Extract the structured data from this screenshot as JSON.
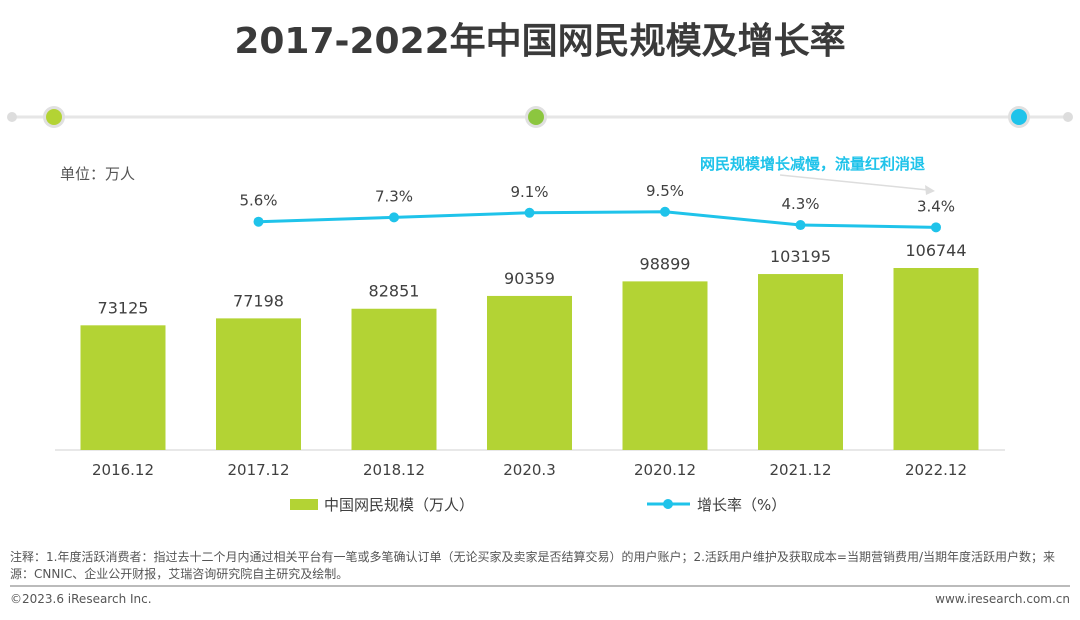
{
  "title": "2017-2022年中国网民规模及增长率",
  "unit_label": "单位：万人",
  "annotation": "网民规模增长减慢，流量红利消退",
  "note": "注释：1.年度活跃消费者：指过去十二个月内通过相关平台有一笔或多笔确认订单（无论买家及卖家是否结算交易）的用户账户；2.活跃用户维护及获取成本=当期营销费用/当期年度活跃用户数；来源：CNNIC、企业公开财报，艾瑞咨询研究院自主研究及绘制。",
  "copyright": "©2023.6 iResearch Inc.",
  "website": "www.iresearch.com.cn",
  "colors": {
    "bar": "#b3d334",
    "line": "#1fc3ea",
    "timeline_dots": [
      "#b3d334",
      "#8cc63f",
      "#1fc3ea"
    ]
  },
  "chart_data": {
    "type": "bar+line",
    "categories": [
      "2016.12",
      "2017.12",
      "2018.12",
      "2020.3",
      "2020.12",
      "2021.12",
      "2022.12"
    ],
    "series": [
      {
        "name": "中国网民规模（万人）",
        "type": "bar",
        "values": [
          73125,
          77198,
          82851,
          90359,
          98899,
          103195,
          106744
        ],
        "labels": [
          "73125",
          "77198",
          "82851",
          "90359",
          "98899",
          "103195",
          "106744"
        ]
      },
      {
        "name": "增长率（%）",
        "type": "line",
        "values": [
          null,
          5.6,
          7.3,
          9.1,
          9.5,
          4.3,
          3.4
        ],
        "labels": [
          "",
          "5.6%",
          "7.3%",
          "9.1%",
          "9.5%",
          "4.3%",
          "3.4%"
        ]
      }
    ],
    "legend": "bottom",
    "grid": false
  }
}
